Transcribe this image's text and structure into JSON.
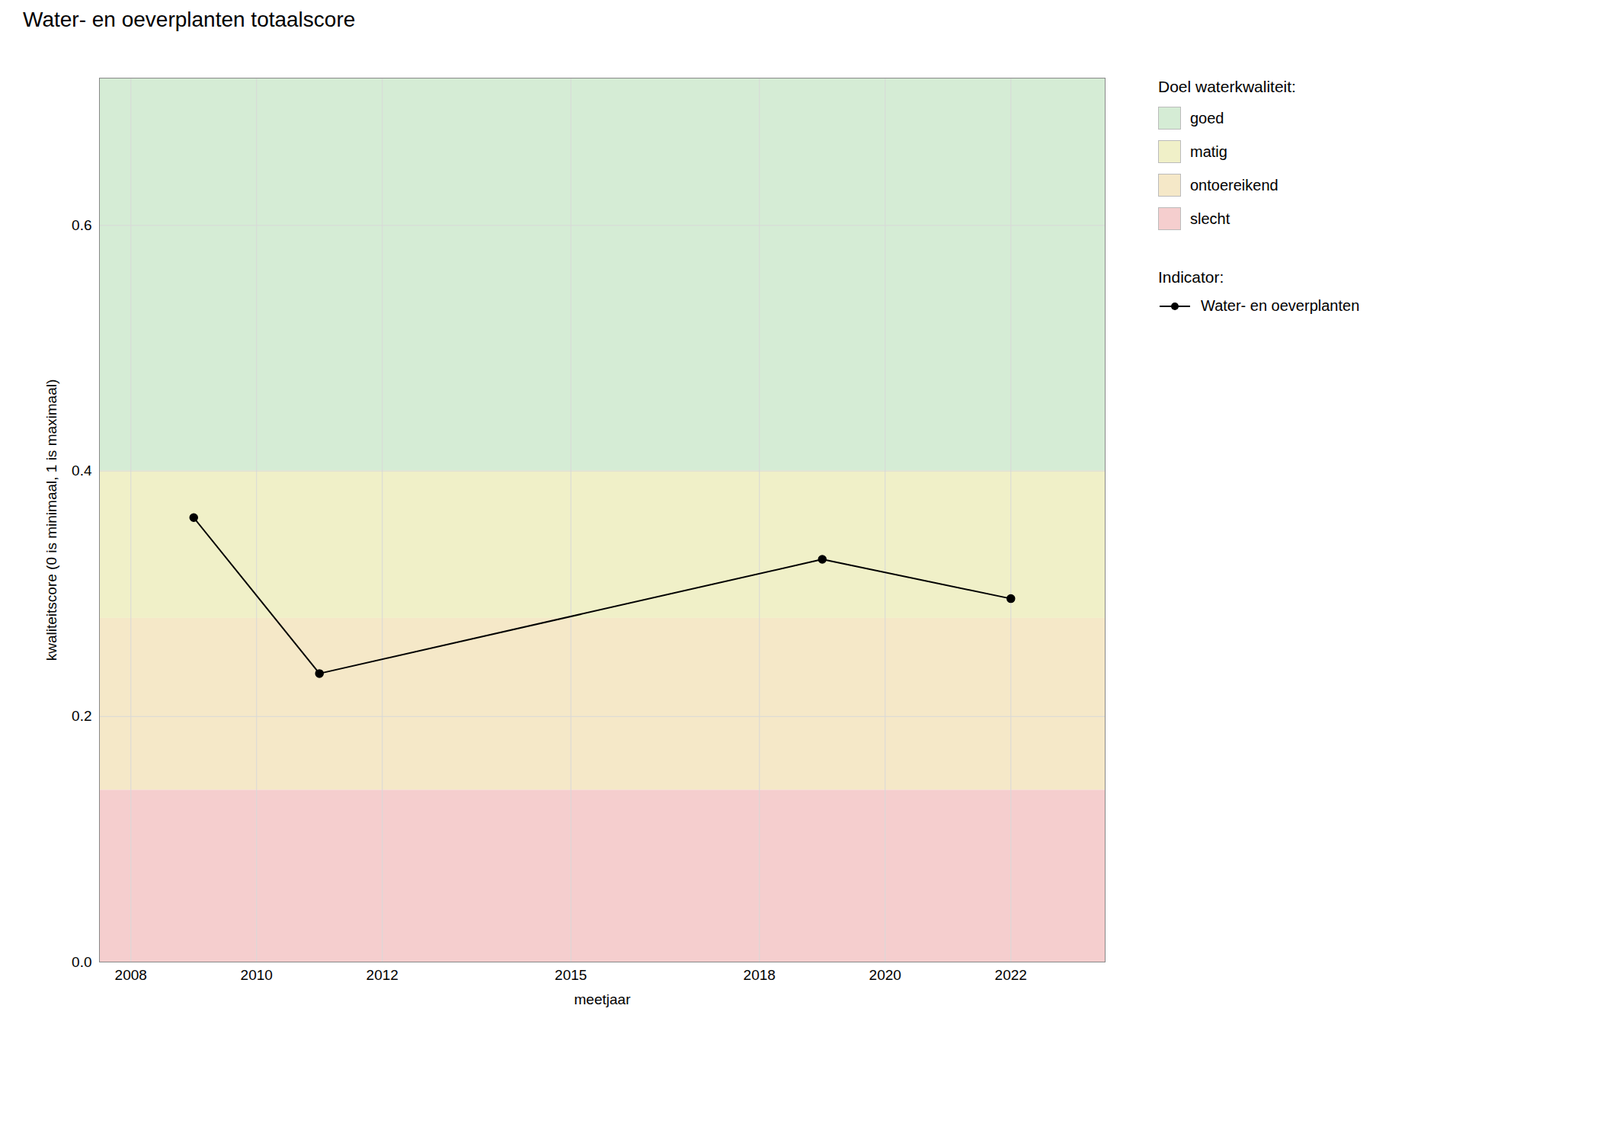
{
  "chart_data": {
    "type": "line",
    "title": "Water- en oeverplanten totaalscore",
    "xlabel": "meetjaar",
    "ylabel": "kwaliteitscore (0 is minimaal, 1 is maximaal)",
    "x": [
      2009,
      2011,
      2019,
      2022
    ],
    "series": [
      {
        "name": "Water- en oeverplanten",
        "color": "#000000",
        "marker": "circle",
        "values": [
          0.362,
          0.235,
          0.328,
          0.296
        ]
      }
    ],
    "series_title": "Indicator:",
    "zones_title": "Doel waterkwaliteit:",
    "zones": [
      {
        "label": "goed",
        "ymin": 0.4,
        "ymax": 0.72,
        "color": "#d5ecd5"
      },
      {
        "label": "matig",
        "ymin": 0.28,
        "ymax": 0.4,
        "color": "#f0f0c8"
      },
      {
        "label": "ontoereikend",
        "ymin": 0.14,
        "ymax": 0.28,
        "color": "#f5e8c8"
      },
      {
        "label": "slecht",
        "ymin": 0.0,
        "ymax": 0.14,
        "color": "#f5cece"
      }
    ],
    "xlim": [
      2007.5,
      2023.5
    ],
    "ylim": [
      0.0,
      0.72
    ],
    "xticks": [
      2008,
      2010,
      2012,
      2015,
      2018,
      2020,
      2022
    ],
    "yticks": [
      {
        "value": 0.0,
        "label": "0.0"
      },
      0.2,
      0.4,
      0.6
    ],
    "grid": true,
    "legend": "right"
  }
}
